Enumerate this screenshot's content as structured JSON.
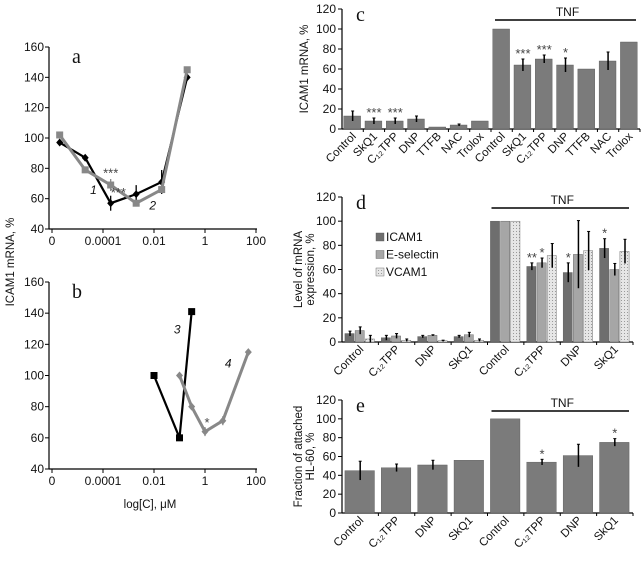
{
  "left_ylabel": "ICAM1 mRNA, %",
  "left_xlabel": "log[C], μM",
  "chart_data": [
    {
      "panel": "a",
      "type": "line",
      "xscale": "log",
      "xticks": [
        "0",
        "0.0001",
        "0.01",
        "1",
        "100"
      ],
      "yticks": [
        "40",
        "60",
        "80",
        "100",
        "120",
        "140",
        "160"
      ],
      "ylim": [
        40,
        160
      ],
      "series": [
        {
          "name": "1",
          "color": "#000000",
          "marker": "diamond",
          "x": [
            2e-06,
            2e-05,
            0.0002,
            0.002,
            0.02,
            0.2
          ],
          "y": [
            97,
            87,
            57,
            63,
            71,
            140
          ],
          "err": [
            2,
            2,
            5,
            6,
            8,
            0
          ]
        },
        {
          "name": "2",
          "color": "#888888",
          "marker": "square",
          "x": [
            2e-06,
            2e-05,
            0.0002,
            0.002,
            0.02,
            0.2
          ],
          "y": [
            102,
            79,
            69,
            57,
            66,
            145
          ],
          "err": [
            0,
            0,
            4,
            0,
            0,
            0
          ]
        }
      ],
      "annotations": [
        {
          "text": "***",
          "x": 0.0002,
          "y": 74
        },
        {
          "text": "***",
          "x": 0.0004,
          "y": 61
        }
      ]
    },
    {
      "panel": "b",
      "type": "line",
      "xscale": "log",
      "xticks": [
        "0",
        "0.0001",
        "0.01",
        "1",
        "100"
      ],
      "yticks": [
        "40",
        "60",
        "80",
        "100",
        "120",
        "140",
        "160"
      ],
      "ylim": [
        40,
        160
      ],
      "series": [
        {
          "name": "3",
          "color": "#000000",
          "marker": "square",
          "x": [
            0.01,
            0.1,
            0.3
          ],
          "y": [
            100,
            60,
            141
          ],
          "err": [
            0,
            0,
            0
          ]
        },
        {
          "name": "4",
          "color": "#888888",
          "marker": "diamond",
          "x": [
            0.1,
            0.3,
            1,
            5,
            50
          ],
          "y": [
            100,
            80,
            64,
            71,
            115
          ],
          "err": [
            0,
            0,
            3,
            3,
            0
          ]
        }
      ],
      "annotations": [
        {
          "text": "*",
          "x": 1,
          "y": 69
        }
      ]
    },
    {
      "panel": "c",
      "type": "bar",
      "ylabel": "ICAM1 mRNA, %",
      "yticks": [
        "0",
        "20",
        "40",
        "60",
        "80",
        "100",
        "120"
      ],
      "ylim": [
        0,
        120
      ],
      "group_label": "TNF",
      "group_start": 7,
      "categories": [
        "Control",
        "SkQ1",
        "C₁₂TPP",
        "DNP",
        "TTFB",
        "NAC",
        "Trolox",
        "Control",
        "SkQ1",
        "C₁₂TPP",
        "DNP",
        "TTFB",
        "NAC",
        "Trolox"
      ],
      "values": [
        13,
        8,
        8,
        10,
        2,
        4,
        8,
        100,
        64,
        70,
        64,
        60,
        68,
        87
      ],
      "errors": [
        5,
        3,
        3,
        3,
        0,
        1,
        0,
        0,
        6,
        4,
        7,
        0,
        9,
        0
      ],
      "stars": [
        "",
        "***",
        "***",
        "",
        "",
        "",
        "",
        "",
        "***",
        "***",
        "*",
        "",
        "",
        ""
      ],
      "color": "#7b7b7b"
    },
    {
      "panel": "d",
      "type": "bar",
      "ylabel": "Level of mRNA expression, %",
      "ylabel_lines": [
        "Level of mRNA",
        "expression, %"
      ],
      "yticks": [
        "0",
        "20",
        "40",
        "60",
        "80",
        "100",
        "120"
      ],
      "ylim": [
        0,
        120
      ],
      "group_label": "TNF",
      "group_start": 4,
      "categories": [
        "Control",
        "C₁₂TPP",
        "DNP",
        "SkQ1",
        "Control",
        "C₁₂TPP",
        "DNP",
        "SkQ1"
      ],
      "legend_position": "upper-left",
      "series": [
        {
          "name": "ICAM1",
          "color": "#6e6e6e",
          "pattern": "solid",
          "values": [
            7,
            3.5,
            4.5,
            4.5,
            100,
            62.5,
            57.5,
            77.5
          ],
          "errors": [
            2,
            2,
            1,
            1,
            0,
            3,
            8,
            8
          ],
          "stars": [
            "",
            "",
            "",
            "",
            "",
            "**",
            "*",
            "*"
          ]
        },
        {
          "name": "E-selectin",
          "color": "#a6a6a6",
          "pattern": "solid",
          "values": [
            9.5,
            5,
            5.5,
            6,
            100,
            65.5,
            72.5,
            60
          ],
          "errors": [
            3,
            2,
            0.5,
            2,
            0,
            4,
            28,
            5
          ],
          "stars": [
            "",
            "",
            "",
            "",
            "",
            "*",
            "",
            ""
          ]
        },
        {
          "name": "VCAM1",
          "color": "#d9d9d9",
          "pattern": "dotted",
          "values": [
            2.5,
            1.5,
            1,
            1.5,
            100,
            71.5,
            75.5,
            75
          ],
          "errors": [
            3,
            1,
            0.5,
            1,
            0,
            10,
            16,
            10
          ],
          "stars": [
            "",
            "",
            "",
            "",
            "",
            "",
            "",
            ""
          ]
        }
      ]
    },
    {
      "panel": "e",
      "type": "bar",
      "ylabel": "Fraction of attached HL-60, %",
      "ylabel_lines": [
        "Fraction of attached",
        "HL-60, %"
      ],
      "yticks": [
        "0",
        "20",
        "40",
        "60",
        "80",
        "100",
        "120"
      ],
      "ylim": [
        0,
        120
      ],
      "group_label": "TNF",
      "group_start": 4,
      "categories": [
        "Control",
        "C₁₂TPP",
        "DNP",
        "SkQ1",
        "Control",
        "C₁₂TPP",
        "DNP",
        "SkQ1"
      ],
      "values": [
        45,
        48,
        51,
        56,
        100,
        54,
        61,
        75
      ],
      "errors": [
        10,
        4,
        5,
        0,
        0,
        3,
        12,
        4
      ],
      "stars": [
        "",
        "",
        "",
        "",
        "",
        "*",
        "",
        "*"
      ],
      "color": "#7b7b7b"
    }
  ]
}
